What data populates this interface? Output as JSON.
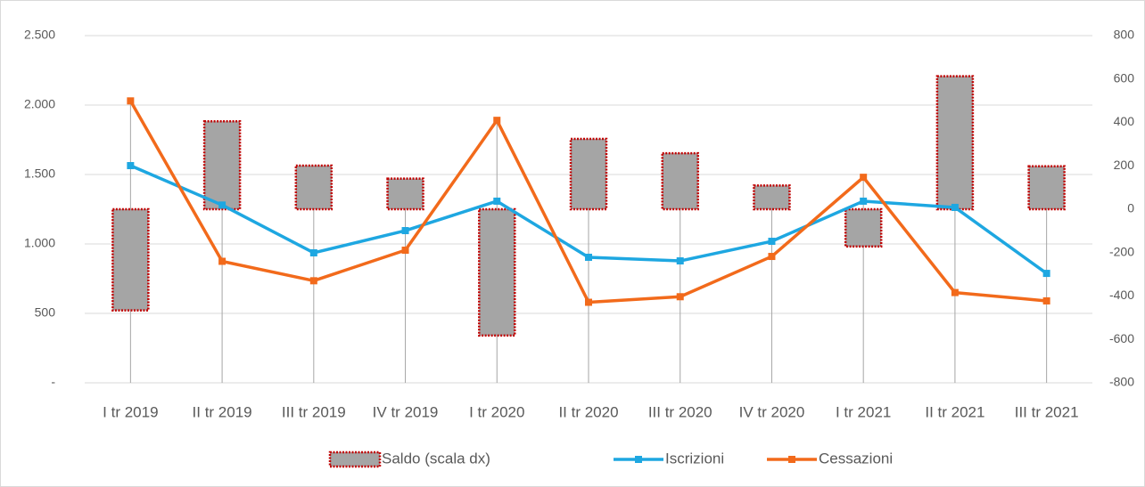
{
  "chart_data": {
    "type": "combo",
    "categories": [
      "I tr 2019",
      "II tr 2019",
      "III tr 2019",
      "IV tr 2019",
      "I tr 2020",
      "II tr 2020",
      "III tr 2020",
      "IV tr 2020",
      "I tr 2021",
      "II tr 2021",
      "III tr 2021"
    ],
    "series": [
      {
        "name": "Saldo (scala dx)",
        "type": "bar",
        "axis": "y2",
        "color": "#a5a5a5",
        "border_color": "#c00000",
        "values": [
          -466,
          405,
          201,
          141,
          -582,
          324,
          258,
          109,
          -172,
          613,
          198
        ]
      },
      {
        "name": "Iscrizioni",
        "type": "line",
        "color": "#1ea7e1",
        "values": [
          1564,
          1280,
          936,
          1096,
          1308,
          904,
          878,
          1019,
          1308,
          1263,
          788
        ]
      },
      {
        "name": "Cessazioni",
        "type": "line",
        "color": "#f26a1b",
        "values": [
          2030,
          875,
          735,
          955,
          1890,
          580,
          620,
          910,
          1480,
          650,
          590
        ]
      }
    ],
    "ylim": [
      0,
      2500
    ],
    "yticks": [
      {
        "value": 0,
        "label": "-"
      },
      500,
      {
        "value": 1000,
        "label": "1.000"
      },
      {
        "value": 1500,
        "label": "1.500"
      },
      {
        "value": 2000,
        "label": "2.000"
      },
      {
        "value": 2500,
        "label": "2.500"
      }
    ],
    "y2lim": [
      -800,
      800
    ],
    "y2ticks": [
      -800,
      -600,
      -400,
      -200,
      0,
      200,
      400,
      600,
      800
    ],
    "grid": true,
    "legend": "bottom"
  }
}
